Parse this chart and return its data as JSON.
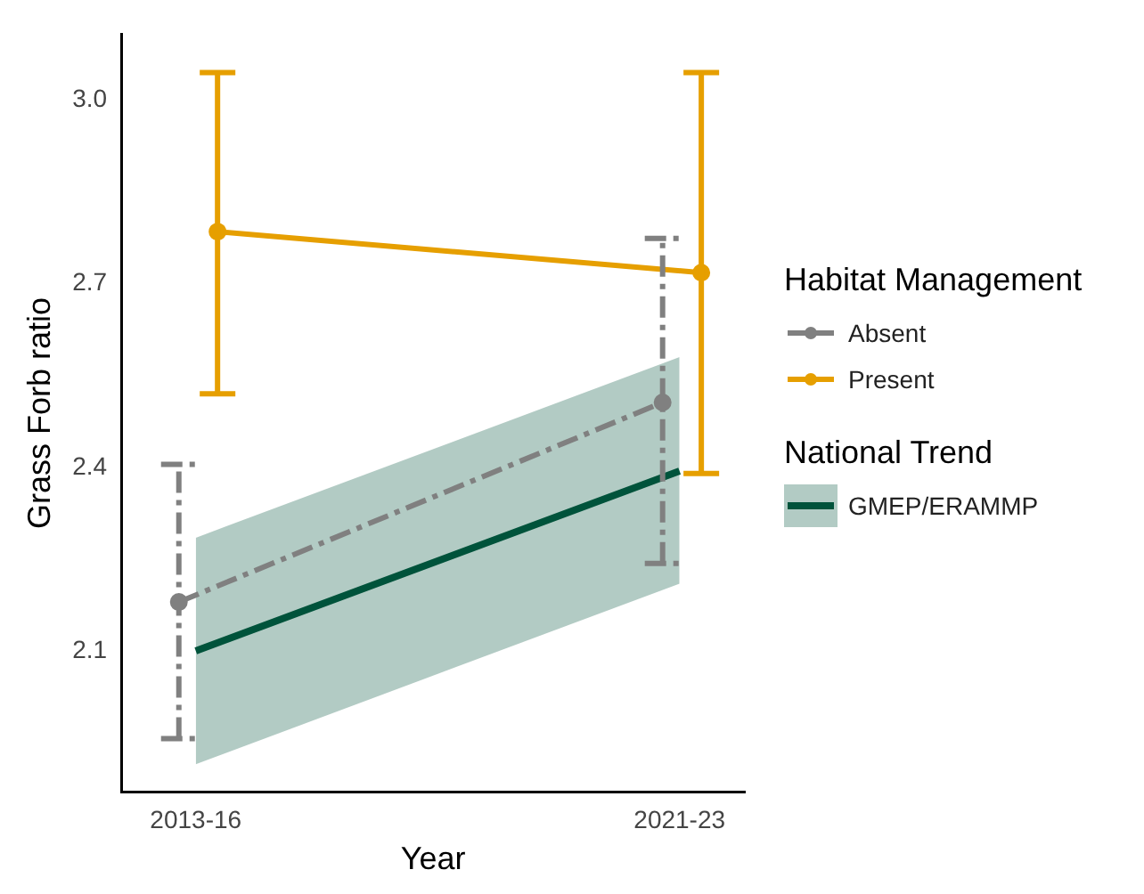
{
  "chart_data": {
    "type": "line",
    "xlabel": "Year",
    "ylabel": "Grass Forb ratio",
    "legend_title": [
      "Habitat Management",
      "National Trend"
    ],
    "categories": [
      "2013-16",
      "2021-23"
    ],
    "series": [
      {
        "name": "Absent",
        "color": "#808080",
        "values": [
          2.18,
          2.506
        ],
        "errors": [
          [
            1.957,
            2.405
          ],
          [
            2.243,
            2.774
          ]
        ],
        "marker": "circle",
        "line_style": "dashed"
      },
      {
        "name": "Present",
        "color": "#e69f00",
        "values": [
          2.785,
          2.718
        ],
        "errors": [
          [
            2.52,
            3.045
          ],
          [
            2.39,
            3.045
          ]
        ],
        "marker": "circle",
        "line_style": "solid"
      },
      {
        "name": "GMEP/ERAMMP",
        "color": "#00533b",
        "values": [
          2.1,
          2.394
        ],
        "lower": [
          1.915,
          2.21
        ],
        "upper": [
          2.285,
          2.58
        ],
        "marker": "none",
        "line_style": "solid"
      }
    ],
    "ylim": [
      1.87,
      3.107
    ],
    "yticks": [
      2.1,
      2.4,
      2.7,
      {
        "value": 3,
        "label": "3.0"
      }
    ],
    "grid": false,
    "legend": "right"
  }
}
